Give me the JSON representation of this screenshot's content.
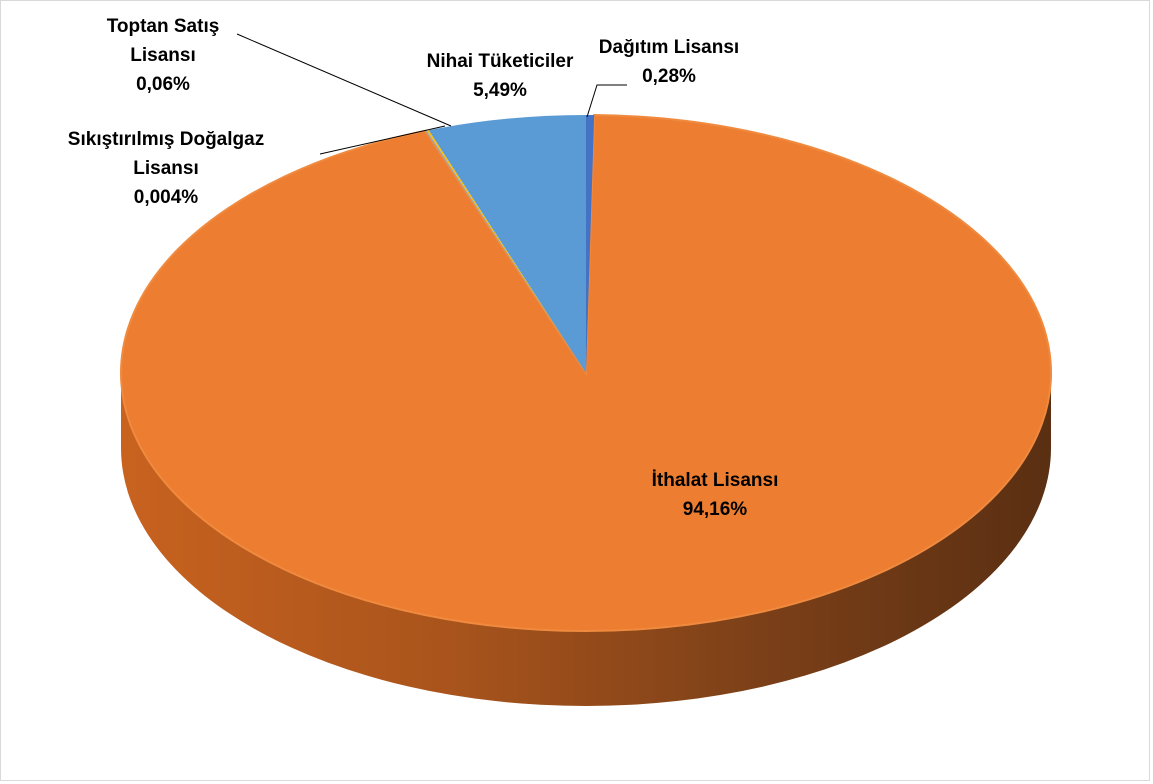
{
  "chart_data": {
    "type": "pie",
    "style": "3d",
    "slices": [
      {
        "label_lines": [
          "İthalat Lisansı"
        ],
        "pct_text": "94,16%",
        "value": 94.16,
        "color": "#ed7d31"
      },
      {
        "label_lines": [
          "Sıkıştırılmış Doğalgaz",
          "Lisansı"
        ],
        "pct_text": "0,004%",
        "value": 0.004,
        "color": "#a5a5a5"
      },
      {
        "label_lines": [
          "Toptan Satış",
          "Lisansı"
        ],
        "pct_text": "0,06%",
        "value": 0.06,
        "color": "#ffc000"
      },
      {
        "label_lines": [
          "Nihai Tüketiciler"
        ],
        "pct_text": "5,49%",
        "value": 5.49,
        "color": "#5b9bd5"
      },
      {
        "label_lines": [
          "Dağıtım Lisansı"
        ],
        "pct_text": "0,28%",
        "value": 0.28,
        "color": "#4472c4"
      }
    ]
  }
}
